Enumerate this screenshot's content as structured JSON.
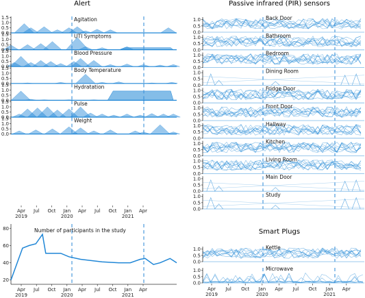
{
  "figure": {
    "alert_title": "Alert",
    "pir_title": "Passive infrared (PIR) sensors",
    "plugs_title": "Smart Plugs",
    "participants_label": "Number of participants in the study",
    "x_ticks": [
      {
        "m": "Apr",
        "y": "2019"
      },
      {
        "m": "Jul",
        "y": ""
      },
      {
        "m": "Oct",
        "y": ""
      },
      {
        "m": "Jan",
        "y": "2020"
      },
      {
        "m": "Apr",
        "y": ""
      },
      {
        "m": "Jul",
        "y": ""
      },
      {
        "m": "Oct",
        "y": ""
      },
      {
        "m": "Jan",
        "y": "2021"
      },
      {
        "m": "Apr",
        "y": ""
      }
    ],
    "accent": "#1f86d6"
  },
  "chart_data": [
    {
      "type": "area",
      "panel": "alert",
      "label": "Agitation",
      "y_ticks": [
        "0.0",
        "0.5",
        "1.0",
        "1.5"
      ],
      "ylim": [
        0,
        1.6
      ],
      "peaks": [
        [
          0.08,
          0.9
        ],
        [
          0.12,
          0.5
        ],
        [
          0.2,
          0.6
        ],
        [
          0.28,
          0.3
        ],
        [
          0.35,
          0.5
        ],
        [
          0.4,
          0.6
        ],
        [
          0.45,
          0.2
        ],
        [
          0.52,
          0.35
        ],
        [
          0.6,
          0.3
        ],
        [
          0.95,
          0.5
        ]
      ]
    },
    {
      "type": "area",
      "panel": "alert",
      "label": "UTI Symptoms",
      "y_ticks": [
        "0.0",
        "0.5",
        "1.0",
        "1.5"
      ],
      "ylim": [
        0,
        1.6
      ],
      "peaks": [
        [
          0.0,
          0.45
        ],
        [
          0.1,
          0.5
        ],
        [
          0.18,
          0.6
        ],
        [
          0.25,
          0.8
        ],
        [
          0.4,
          1.2
        ],
        [
          0.45,
          0.3
        ],
        [
          0.55,
          0.2
        ],
        [
          0.7,
          0.3
        ]
      ],
      "plateau": [
        0.67,
        0.98,
        0.2
      ]
    },
    {
      "type": "area",
      "panel": "alert",
      "label": "Blood Pressure",
      "y_ticks": [
        "0.0",
        "0.5",
        "1.0",
        "1.5"
      ],
      "ylim": [
        0,
        1.6
      ],
      "peaks": [
        [
          0.02,
          0.4
        ],
        [
          0.06,
          1.0
        ],
        [
          0.12,
          0.4
        ],
        [
          0.18,
          0.6
        ],
        [
          0.24,
          0.5
        ],
        [
          0.3,
          0.3
        ],
        [
          0.38,
          0.5
        ],
        [
          0.42,
          0.8
        ],
        [
          0.5,
          0.6
        ],
        [
          0.6,
          0.2
        ],
        [
          0.7,
          0.25
        ],
        [
          0.8,
          0.2
        ],
        [
          0.9,
          0.15
        ],
        [
          0.98,
          0.2
        ]
      ]
    },
    {
      "type": "area",
      "panel": "alert",
      "label": "Body Temperature",
      "y_ticks": [
        "0.0",
        "0.5",
        "1.0",
        "1.5"
      ],
      "ylim": [
        0,
        1.6
      ],
      "peaks": [
        [
          0.1,
          0.05
        ],
        [
          0.3,
          0.1
        ],
        [
          0.45,
          0.9
        ],
        [
          0.55,
          0.1
        ],
        [
          0.65,
          0.15
        ],
        [
          0.85,
          0.05
        ],
        [
          0.97,
          0.1
        ]
      ]
    },
    {
      "type": "area",
      "panel": "alert",
      "label": "Hydratation",
      "y_ticks": [
        "0.0",
        "0.5",
        "1.0",
        "1.5"
      ],
      "ylim": [
        0,
        1.6
      ],
      "peaks": [
        [
          0.06,
          0.9
        ],
        [
          0.12,
          0.1
        ],
        [
          0.2,
          0.05
        ],
        [
          0.35,
          0.05
        ],
        [
          0.5,
          0.05
        ]
      ],
      "plateau": [
        0.6,
        0.98,
        0.9
      ]
    },
    {
      "type": "area",
      "panel": "alert",
      "label": "Pulse",
      "y_ticks": [
        "0.0",
        "0.5",
        "1.0",
        "1.5"
      ],
      "ylim": [
        0,
        1.6
      ],
      "peaks": [
        [
          0.05,
          0.3
        ],
        [
          0.1,
          0.8
        ],
        [
          0.16,
          0.9
        ],
        [
          0.22,
          1.0
        ],
        [
          0.28,
          0.7
        ],
        [
          0.35,
          0.8
        ],
        [
          0.42,
          1.0
        ],
        [
          0.48,
          0.4
        ],
        [
          0.55,
          0.3
        ],
        [
          0.62,
          0.2
        ],
        [
          0.7,
          0.3
        ],
        [
          0.78,
          0.2
        ],
        [
          0.85,
          0.35
        ],
        [
          0.92,
          0.3
        ],
        [
          0.98,
          0.3
        ]
      ]
    },
    {
      "type": "area",
      "panel": "alert",
      "label": "Weight",
      "y_ticks": [
        "0.0",
        "0.5",
        "1.0",
        "1.5"
      ],
      "ylim": [
        0,
        1.6
      ],
      "peaks": [
        [
          0.05,
          0.3
        ],
        [
          0.15,
          0.4
        ],
        [
          0.25,
          0.5
        ],
        [
          0.35,
          0.7
        ],
        [
          0.42,
          0.6
        ],
        [
          0.5,
          0.3
        ],
        [
          0.6,
          0.4
        ],
        [
          0.75,
          0.3
        ],
        [
          0.8,
          0.2
        ],
        [
          0.9,
          0.9
        ],
        [
          0.98,
          0.2
        ]
      ]
    },
    {
      "type": "line",
      "panel": "participants",
      "ylabel": "",
      "y_ticks": [
        "20",
        "40",
        "60",
        "80"
      ],
      "ylim": [
        15,
        85
      ],
      "points": [
        [
          0.0,
          20
        ],
        [
          0.07,
          57
        ],
        [
          0.11,
          60
        ],
        [
          0.15,
          62
        ],
        [
          0.19,
          73
        ],
        [
          0.21,
          51
        ],
        [
          0.3,
          51
        ],
        [
          0.35,
          47
        ],
        [
          0.42,
          44
        ],
        [
          0.55,
          41
        ],
        [
          0.65,
          40
        ],
        [
          0.72,
          40
        ],
        [
          0.78,
          44
        ],
        [
          0.81,
          45
        ],
        [
          0.86,
          38
        ],
        [
          0.9,
          40
        ],
        [
          0.96,
          45
        ],
        [
          1.0,
          40
        ]
      ]
    },
    {
      "type": "line",
      "panel": "pir",
      "series_labels": [
        "Back Door",
        "Bathroom",
        "Bedroom",
        "Dining Room",
        "Fridge Door",
        "Front Door",
        "Hallway",
        "Kitchen",
        "Living Room",
        "Main Door",
        "Study"
      ],
      "y_ticks": [
        "0.0",
        "0.5",
        "1.0"
      ],
      "ylim": [
        0,
        1.2
      ]
    },
    {
      "type": "line",
      "panel": "plugs",
      "series_labels": [
        "Kettle",
        "Microwave"
      ],
      "y_ticks": [
        "0.0",
        "0.5",
        "1.0"
      ],
      "ylim": [
        0,
        1.2
      ]
    }
  ]
}
